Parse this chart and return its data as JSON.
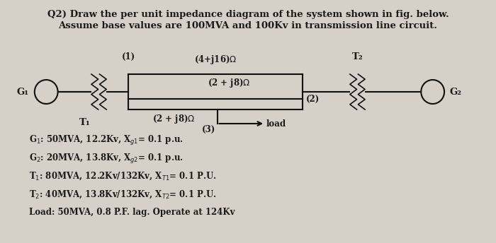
{
  "bg_color": "#d6d0c8",
  "title_line1": "Q2) Draw the per unit impedance diagram of the system shown in fig. below.",
  "title_line2": "Assume base values are 100MVA and 100Kv in transmission line circuit.",
  "bold_words_line2": [
    "100MVA",
    "100Kv"
  ],
  "circuit": {
    "G1_label": "G₁",
    "G2_label": "G₂",
    "T1_label": "T₁",
    "T2_label": "T₂",
    "node1_label": "(1)",
    "node2_label": "(2)",
    "node3_label": "(3)",
    "line_top_label": "(4+j16)Ω",
    "line_mid_label": "(2 + j8)Ω",
    "line_bot_label": "(2 + j8)Ω",
    "load_label": "load"
  },
  "info_lines": [
    "G₁: 50MVA, 12.2Kv, Xₑ₁= 0.1 p.u.",
    "G₂: 20MVA, 13.8Kv, Xₑ₂= 0.1 p.u.",
    "T₁: 80MVA, 12.2Kv/132Kv, Xₜ₁= 0.1 P.U.",
    "T₂: 40MVA, 13.8Kv/132Kv, Xₜ₂= 0.1 P.U.",
    "Load: 50MVA, 0.8 P.F. lag. Operate at 124Kv"
  ],
  "text_color": "#1a1a1a",
  "line_color": "#111111",
  "font_size_title": 9.5,
  "font_size_circuit": 8.5,
  "font_size_info": 8.5
}
